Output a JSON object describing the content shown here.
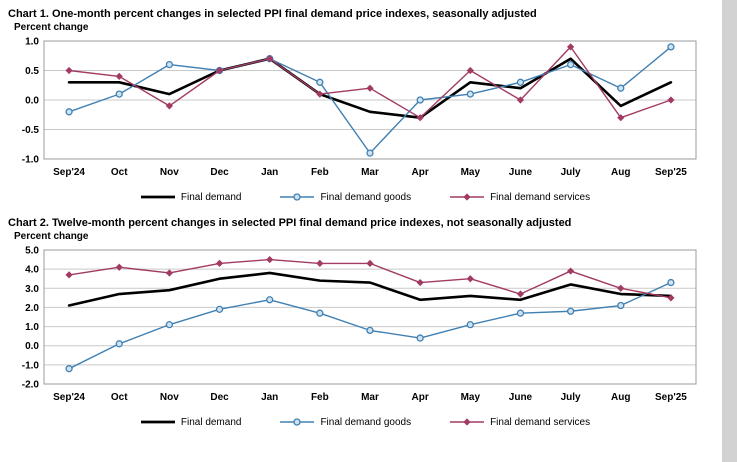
{
  "chart_data": [
    {
      "type": "line",
      "title": "Chart 1. One-month percent changes in selected PPI final demand price indexes, seasonally adjusted",
      "ylabel": "Percent change",
      "xlabel": "",
      "ylim": [
        -1.0,
        1.0
      ],
      "ystep": 0.5,
      "grid": true,
      "legend_position": "bottom",
      "categories": [
        "Sep'24",
        "Oct",
        "Nov",
        "Dec",
        "Jan",
        "Feb",
        "Mar",
        "Apr",
        "May",
        "June",
        "July",
        "Aug",
        "Sep'25"
      ],
      "series": [
        {
          "name": "Final demand",
          "color": "#000000",
          "marker": "none",
          "width": 2.6,
          "values": [
            0.3,
            0.3,
            0.1,
            0.5,
            0.7,
            0.1,
            -0.2,
            -0.3,
            0.3,
            0.2,
            0.7,
            -0.1,
            0.3
          ]
        },
        {
          "name": "Final demand goods",
          "color": "#4180b2",
          "marker": "circle",
          "width": 1.4,
          "values": [
            -0.2,
            0.1,
            0.6,
            0.5,
            0.7,
            0.3,
            -0.9,
            0.0,
            0.1,
            0.3,
            0.6,
            0.2,
            0.9
          ]
        },
        {
          "name": "Final demand services",
          "color": "#a23b63",
          "marker": "diamond",
          "width": 1.4,
          "values": [
            0.5,
            0.4,
            -0.1,
            0.5,
            0.7,
            0.1,
            0.2,
            -0.3,
            0.5,
            0.0,
            0.9,
            -0.3,
            0.0
          ]
        }
      ]
    },
    {
      "type": "line",
      "title": "Chart 2. Twelve-month percent changes in selected PPI final demand price indexes, not seasonally adjusted",
      "ylabel": "Percent change",
      "xlabel": "",
      "ylim": [
        -2.0,
        5.0
      ],
      "ystep": 1.0,
      "grid": true,
      "legend_position": "bottom",
      "categories": [
        "Sep'24",
        "Oct",
        "Nov",
        "Dec",
        "Jan",
        "Feb",
        "Mar",
        "Apr",
        "May",
        "June",
        "July",
        "Aug",
        "Sep'25"
      ],
      "series": [
        {
          "name": "Final demand",
          "color": "#000000",
          "marker": "none",
          "width": 2.6,
          "values": [
            2.1,
            2.7,
            2.9,
            3.5,
            3.8,
            3.4,
            3.3,
            2.4,
            2.6,
            2.4,
            3.2,
            2.7,
            2.6
          ]
        },
        {
          "name": "Final demand goods",
          "color": "#4180b2",
          "marker": "circle",
          "width": 1.4,
          "values": [
            -1.2,
            0.1,
            1.1,
            1.9,
            2.4,
            1.7,
            0.8,
            0.4,
            1.1,
            1.7,
            1.8,
            2.1,
            3.3
          ]
        },
        {
          "name": "Final demand services",
          "color": "#a23b63",
          "marker": "diamond",
          "width": 1.4,
          "values": [
            3.7,
            4.1,
            3.8,
            4.3,
            4.5,
            4.3,
            4.3,
            3.3,
            3.5,
            2.7,
            3.9,
            3.0,
            2.5
          ]
        }
      ]
    }
  ],
  "style": {
    "grid_color": "#c9c9c9",
    "border_color": "#9b9b9b",
    "circle_fill": "#cfe3f2"
  }
}
